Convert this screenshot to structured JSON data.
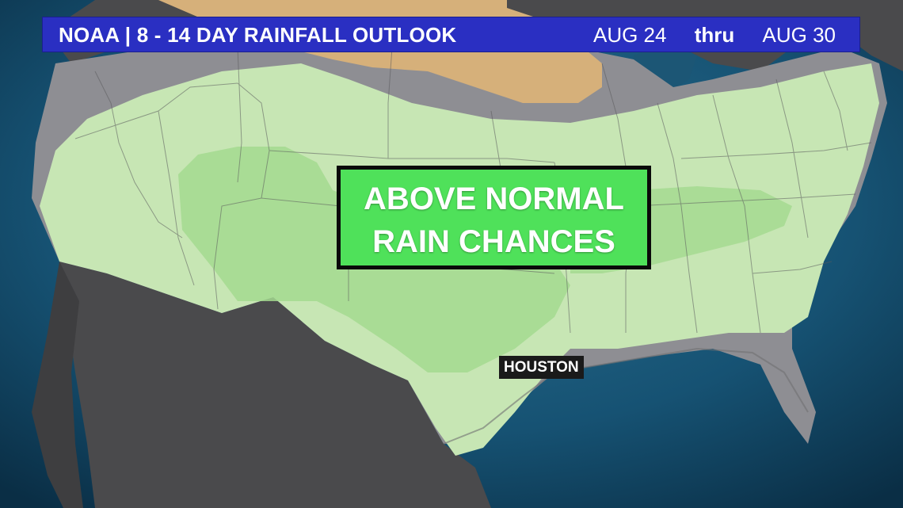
{
  "header": {
    "title": "NOAA | 8 - 14 DAY RAINFALL OUTLOOK",
    "date_start": "AUG 24",
    "date_separator": "thru",
    "date_end": "AUG 30"
  },
  "callout": {
    "line1": "ABOVE NORMAL",
    "line2": "RAIN CHANCES"
  },
  "city": {
    "name": "HOUSTON"
  },
  "colors": {
    "ocean": "#0d3b55",
    "land_outside": "#4a4a4c",
    "near_normal": "#8e8e93",
    "above_normal_light": "#c7e6b4",
    "above_normal_medium": "#a3d98f",
    "below_normal": "#d6b07a",
    "header_bar": "#2a2fc2",
    "callout_fill": "#4fe15a"
  }
}
